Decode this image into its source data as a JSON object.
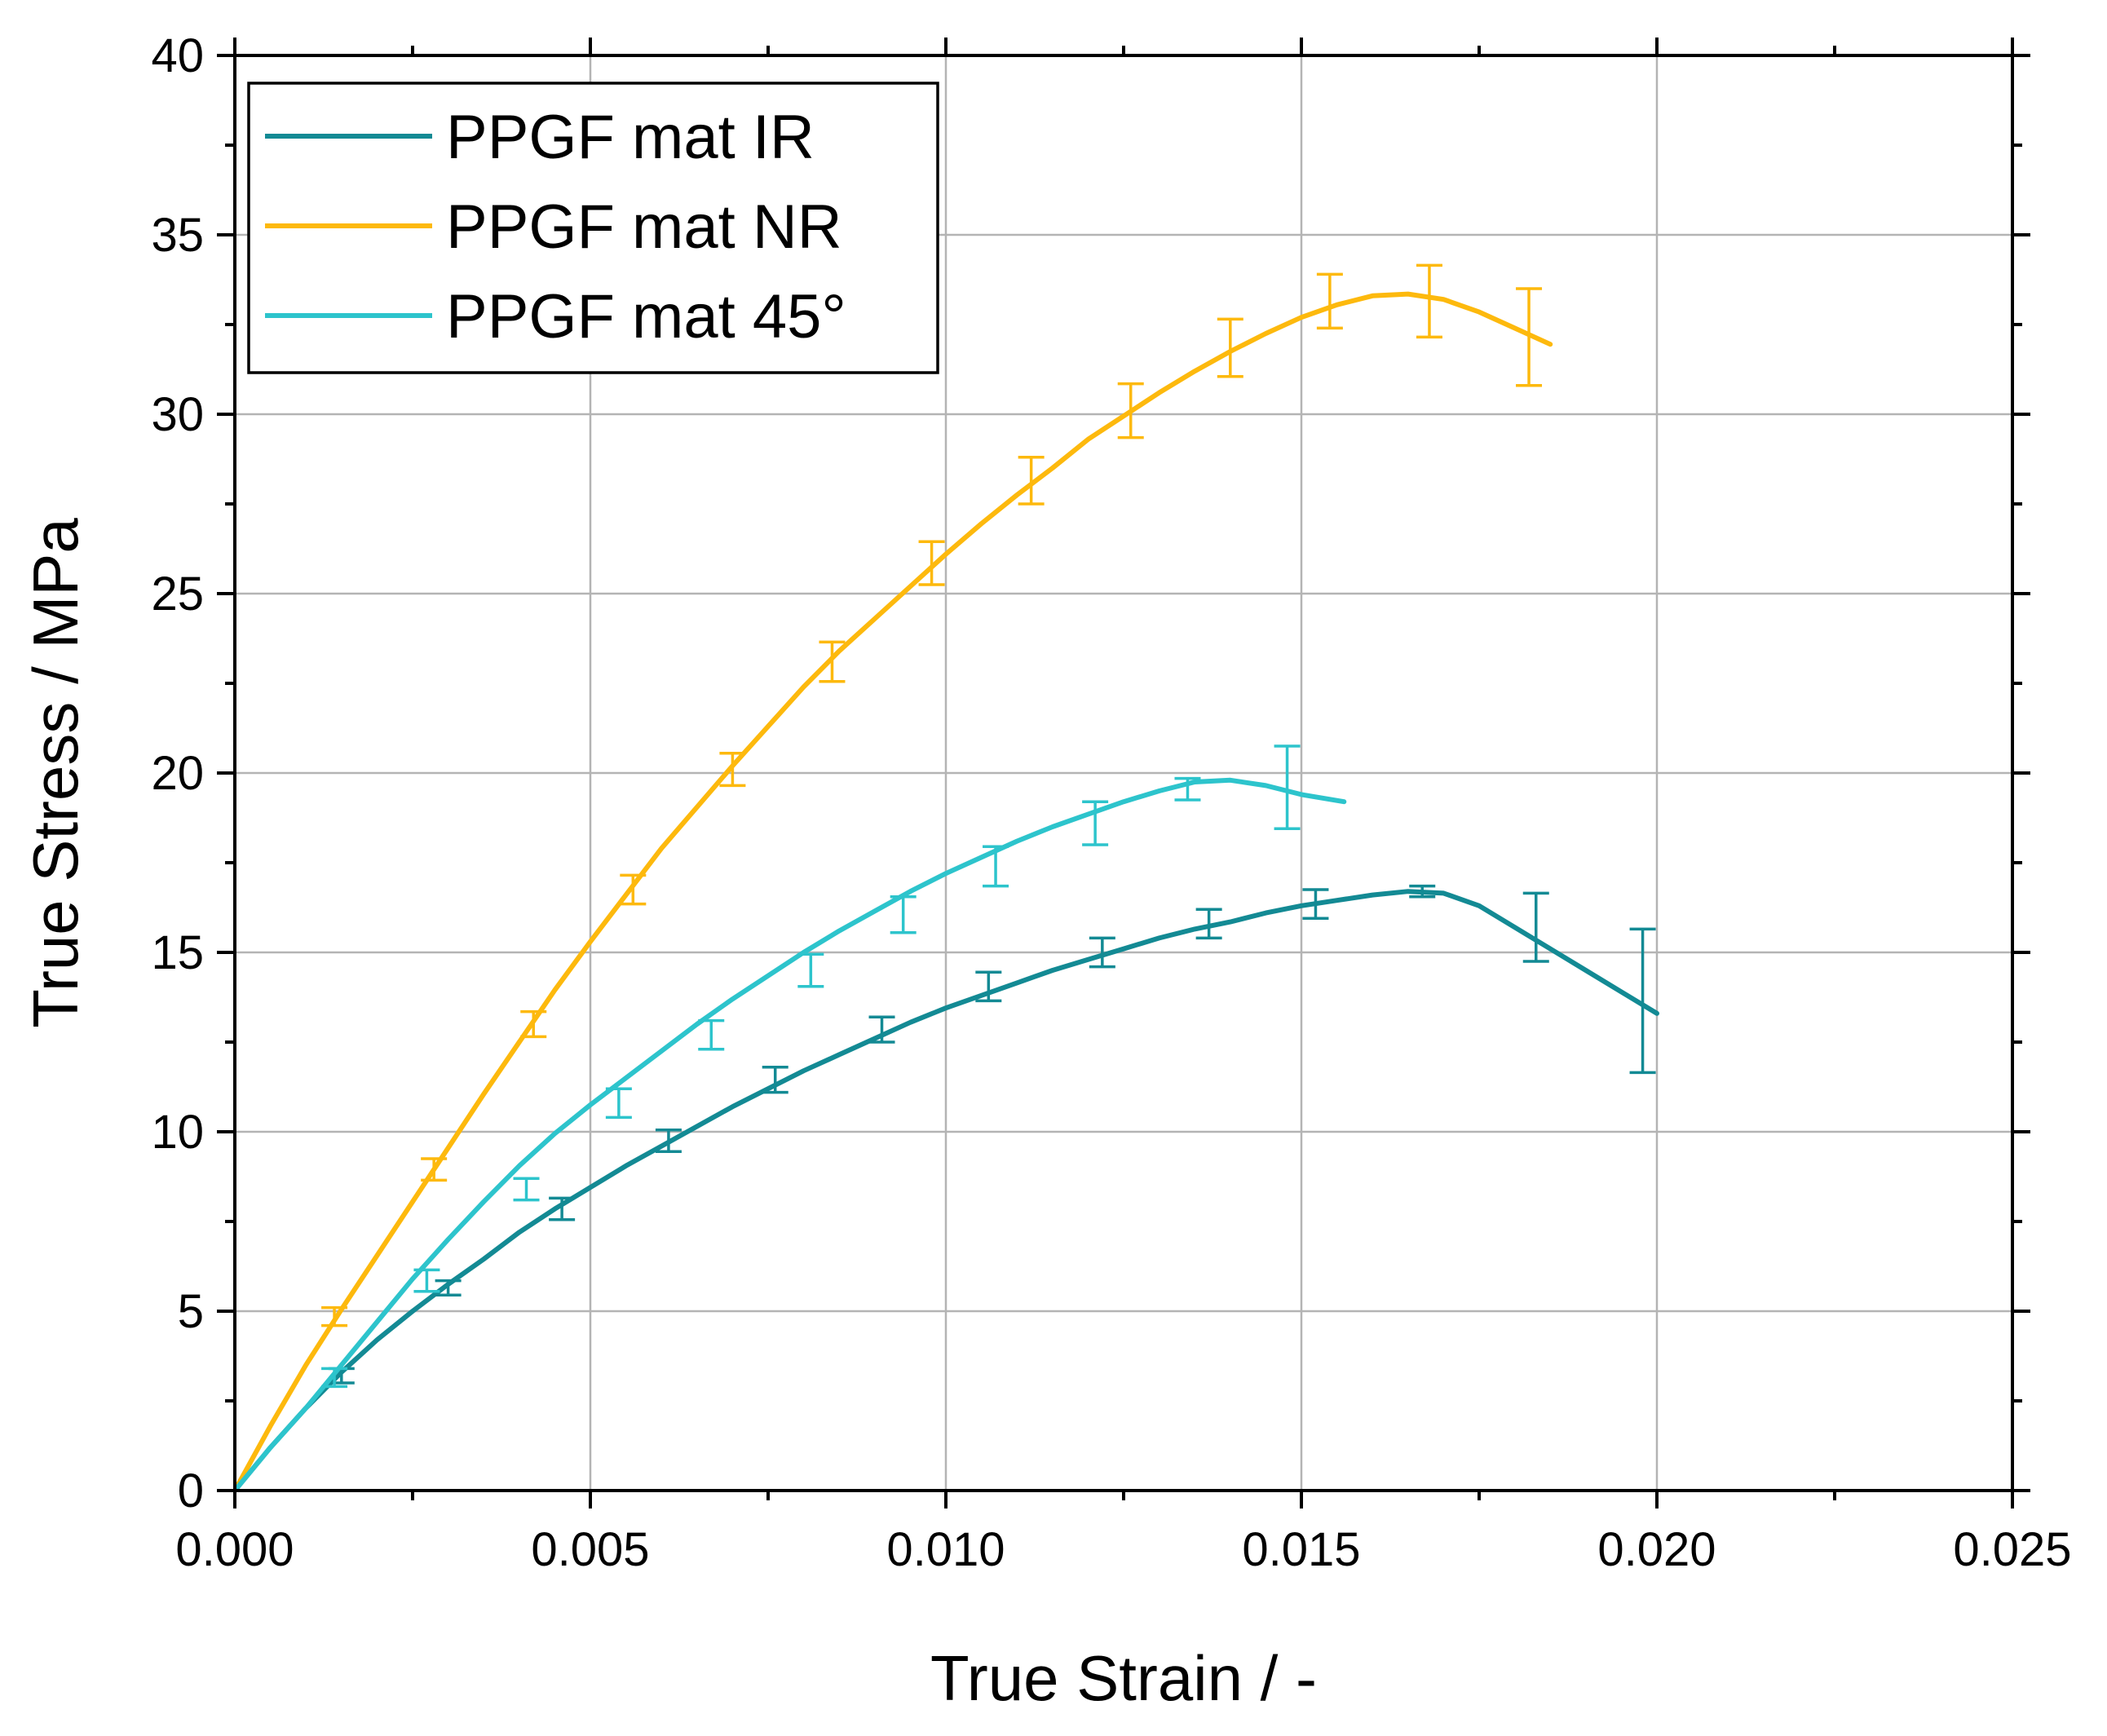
{
  "chart_data": {
    "type": "line",
    "title": "",
    "xlabel": "True Strain / -",
    "ylabel": "True Stress / MPa",
    "xlim": [
      0.0,
      0.025
    ],
    "ylim": [
      0,
      40
    ],
    "x_ticks": [
      0.0,
      0.005,
      0.01,
      0.015,
      0.02,
      0.025
    ],
    "x_tick_labels": [
      "0.000",
      "0.005",
      "0.010",
      "0.015",
      "0.020",
      "0.025"
    ],
    "y_ticks": [
      0,
      5,
      10,
      15,
      20,
      25,
      30,
      35,
      40
    ],
    "y_tick_labels": [
      "0",
      "5",
      "10",
      "15",
      "20",
      "25",
      "30",
      "35",
      "40"
    ],
    "grid": true,
    "legend_position": "top-left",
    "series": [
      {
        "name": "PPGF mat IR",
        "color": "#138a94",
        "x": [
          0.0,
          0.0005,
          0.001,
          0.0015,
          0.002,
          0.0025,
          0.003,
          0.0035,
          0.004,
          0.0045,
          0.005,
          0.0055,
          0.006,
          0.0065,
          0.007,
          0.0075,
          0.008,
          0.0085,
          0.009,
          0.0095,
          0.01,
          0.0105,
          0.011,
          0.0115,
          0.012,
          0.0125,
          0.013,
          0.0135,
          0.014,
          0.0145,
          0.015,
          0.0155,
          0.016,
          0.0165,
          0.017,
          0.0175,
          0.018,
          0.0185,
          0.019,
          0.0195,
          0.02
        ],
        "y": [
          0.0,
          1.2,
          2.3,
          3.3,
          4.2,
          5.0,
          5.75,
          6.45,
          7.2,
          7.85,
          8.45,
          9.05,
          9.6,
          10.15,
          10.7,
          11.2,
          11.7,
          12.15,
          12.6,
          13.05,
          13.45,
          13.8,
          14.15,
          14.5,
          14.8,
          15.1,
          15.4,
          15.65,
          15.85,
          16.1,
          16.3,
          16.45,
          16.6,
          16.7,
          16.65,
          16.3,
          15.7,
          15.1,
          14.5,
          13.9,
          13.3
        ],
        "error_bars": [
          {
            "x": 0.0015,
            "y": 3.2,
            "err": 0.2
          },
          {
            "x": 0.003,
            "y": 5.65,
            "err": 0.2
          },
          {
            "x": 0.0046,
            "y": 7.85,
            "err": 0.3
          },
          {
            "x": 0.0061,
            "y": 9.75,
            "err": 0.3
          },
          {
            "x": 0.0076,
            "y": 11.45,
            "err": 0.35
          },
          {
            "x": 0.0091,
            "y": 12.85,
            "err": 0.35
          },
          {
            "x": 0.0106,
            "y": 14.05,
            "err": 0.4
          },
          {
            "x": 0.0122,
            "y": 15.0,
            "err": 0.4
          },
          {
            "x": 0.0137,
            "y": 15.8,
            "err": 0.4
          },
          {
            "x": 0.0152,
            "y": 16.35,
            "err": 0.4
          },
          {
            "x": 0.0167,
            "y": 16.7,
            "err": 0.15
          },
          {
            "x": 0.0183,
            "y": 15.7,
            "err": 0.95
          },
          {
            "x": 0.0198,
            "y": 13.65,
            "err": 2.0
          }
        ]
      },
      {
        "name": "PPGF mat NR",
        "color": "#fdb90d",
        "x": [
          0.0,
          0.0005,
          0.001,
          0.0015,
          0.002,
          0.0025,
          0.003,
          0.0035,
          0.004,
          0.0045,
          0.005,
          0.0055,
          0.006,
          0.0065,
          0.007,
          0.0075,
          0.008,
          0.0085,
          0.009,
          0.0095,
          0.01,
          0.0105,
          0.011,
          0.0115,
          0.012,
          0.0125,
          0.013,
          0.0135,
          0.014,
          0.0145,
          0.015,
          0.0155,
          0.016,
          0.0165,
          0.017,
          0.0175,
          0.018,
          0.0185
        ],
        "y": [
          0.0,
          1.8,
          3.5,
          5.05,
          6.55,
          8.05,
          9.55,
          11.05,
          12.5,
          13.95,
          15.3,
          16.6,
          17.9,
          19.05,
          20.2,
          21.3,
          22.4,
          23.4,
          24.3,
          25.2,
          26.1,
          26.95,
          27.75,
          28.5,
          29.3,
          29.95,
          30.6,
          31.2,
          31.75,
          32.25,
          32.7,
          33.05,
          33.3,
          33.35,
          33.2,
          32.85,
          32.4,
          31.95
        ],
        "error_bars": [
          {
            "x": 0.0014,
            "y": 4.85,
            "err": 0.25
          },
          {
            "x": 0.0028,
            "y": 8.95,
            "err": 0.3
          },
          {
            "x": 0.0042,
            "y": 13.0,
            "err": 0.35
          },
          {
            "x": 0.0056,
            "y": 16.75,
            "err": 0.4
          },
          {
            "x": 0.007,
            "y": 20.1,
            "err": 0.45
          },
          {
            "x": 0.0084,
            "y": 23.1,
            "err": 0.55
          },
          {
            "x": 0.0098,
            "y": 25.85,
            "err": 0.6
          },
          {
            "x": 0.0112,
            "y": 28.15,
            "err": 0.65
          },
          {
            "x": 0.0126,
            "y": 30.1,
            "err": 0.75
          },
          {
            "x": 0.014,
            "y": 31.85,
            "err": 0.8
          },
          {
            "x": 0.0154,
            "y": 33.15,
            "err": 0.75
          },
          {
            "x": 0.0168,
            "y": 33.15,
            "err": 1.0
          },
          {
            "x": 0.0182,
            "y": 32.15,
            "err": 1.35
          }
        ]
      },
      {
        "name": "PPGF mat 45°",
        "color": "#2dc4cc",
        "x": [
          0.0,
          0.0005,
          0.001,
          0.0015,
          0.002,
          0.0025,
          0.003,
          0.0035,
          0.004,
          0.0045,
          0.005,
          0.0055,
          0.006,
          0.0065,
          0.007,
          0.0075,
          0.008,
          0.0085,
          0.009,
          0.0095,
          0.01,
          0.0105,
          0.011,
          0.0115,
          0.012,
          0.0125,
          0.013,
          0.0135,
          0.014,
          0.0145,
          0.015,
          0.0156
        ],
        "y": [
          0.0,
          1.2,
          2.3,
          3.5,
          4.7,
          5.9,
          7.0,
          8.05,
          9.05,
          9.95,
          10.75,
          11.5,
          12.25,
          13.0,
          13.7,
          14.35,
          15.0,
          15.6,
          16.15,
          16.7,
          17.2,
          17.65,
          18.1,
          18.5,
          18.85,
          19.2,
          19.5,
          19.75,
          19.8,
          19.65,
          19.4,
          19.2
        ],
        "error_bars": [
          {
            "x": 0.0014,
            "y": 3.15,
            "err": 0.25
          },
          {
            "x": 0.0027,
            "y": 5.85,
            "err": 0.3
          },
          {
            "x": 0.0041,
            "y": 8.4,
            "err": 0.3
          },
          {
            "x": 0.0054,
            "y": 10.8,
            "err": 0.4
          },
          {
            "x": 0.0067,
            "y": 12.7,
            "err": 0.4
          },
          {
            "x": 0.0081,
            "y": 14.5,
            "err": 0.45
          },
          {
            "x": 0.0094,
            "y": 16.05,
            "err": 0.5
          },
          {
            "x": 0.0107,
            "y": 17.4,
            "err": 0.55
          },
          {
            "x": 0.0121,
            "y": 18.6,
            "err": 0.6
          },
          {
            "x": 0.0134,
            "y": 19.55,
            "err": 0.3
          },
          {
            "x": 0.0148,
            "y": 19.6,
            "err": 1.15
          }
        ]
      }
    ]
  }
}
